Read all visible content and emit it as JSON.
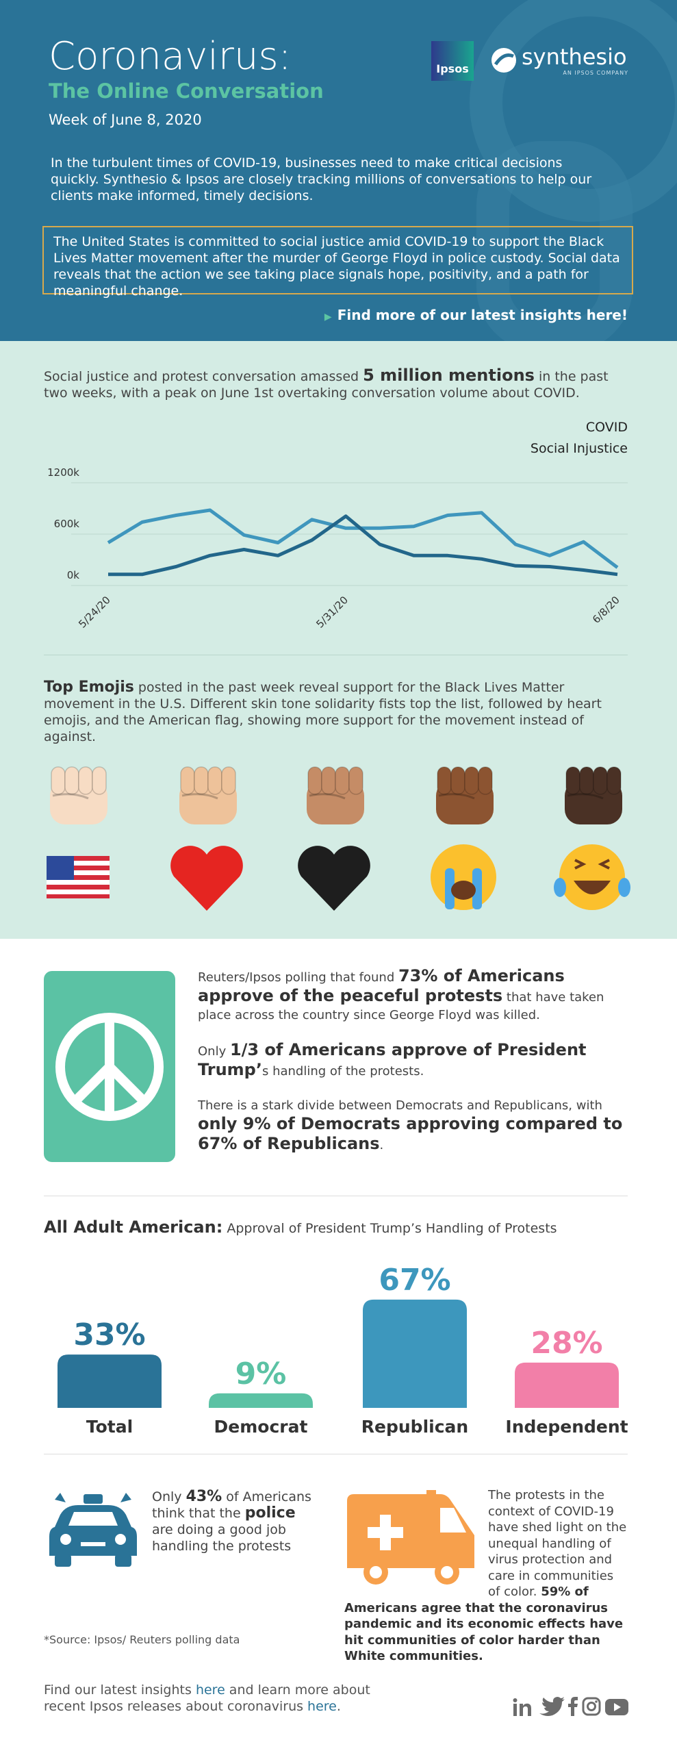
{
  "header": {
    "title": "Coronavirus:",
    "subtitle": "The Online Conversation",
    "date": "Week of June 8, 2020",
    "intro": "In the turbulent times of COVID-19, businesses need to make critical decisions quickly. Synthesio & Ipsos are closely tracking millions of conversations to help our clients make informed, timely decisions.",
    "highlight": "The United States is committed to social justice amid COVID-19 to support the Black Lives Matter movement after the murder of George Floyd in police custody. Social data reveals that the action we see taking place signals hope, positivity, and a path for meaningful change.",
    "cta": "Find more of our latest insights here!",
    "logo_ipsos": "Ipsos",
    "logo_synthesio": "synthesio",
    "logo_tagline": "AN IPSOS COMPANY"
  },
  "conversation": [
    "Social justice and protest conversation amassed ",
    "5 million mentions",
    " in the past two weeks, with a peak on June 1st overtaking conversation volume about COVID."
  ],
  "chart_data": [
    {
      "type": "line",
      "categories": [
        "5/24/20",
        null,
        null,
        null,
        null,
        null,
        null,
        "5/31/20",
        null,
        null,
        null,
        null,
        null,
        null,
        null,
        "6/8/20"
      ],
      "series": [
        {
          "name": "COVID",
          "color": "#3f96bd",
          "values": [
            500000,
            740000,
            820000,
            880000,
            590000,
            500000,
            770000,
            670000,
            670000,
            690000,
            820000,
            850000,
            480000,
            350000,
            510000,
            210000
          ]
        },
        {
          "name": "Social Injustice",
          "color": "#22668a",
          "values": [
            130000,
            130000,
            220000,
            350000,
            420000,
            350000,
            530000,
            810000,
            480000,
            350000,
            350000,
            310000,
            230000,
            220000,
            180000,
            130000
          ]
        }
      ],
      "ylim": [
        0,
        1200000
      ],
      "yticks": [
        {
          "value": 0,
          "label": "0k"
        },
        {
          "value": 600000,
          "label": "600k"
        },
        {
          "value": 1200000,
          "label": "1200k"
        }
      ],
      "grid": true
    },
    {
      "type": "bar",
      "title": "All Adult American:",
      "subtitle": "Approval of President Trump’s Handling of Protests",
      "categories": [
        "Total",
        "Democrat",
        "Republican",
        "Independent"
      ],
      "values": [
        33,
        9,
        67,
        28
      ],
      "value_labels": [
        "33%",
        "9%",
        "67%",
        "28%"
      ],
      "colors": [
        "#2a7397",
        "#5bc2a4",
        "#3d97bd",
        "#f27fa8"
      ]
    }
  ],
  "emojis": [
    "Top Emojis",
    " posted in the past week reveal support for the Black Lives Matter movement in the U.S.  Different skin tone solidarity fists top the list, followed by heart emojis, and the American flag, showing more support for the movement instead of against."
  ],
  "polling": {
    "p1": [
      "Reuters/Ipsos polling that found ",
      "73% of Americans approve of the peaceful protests",
      " that have taken place across the country since George Floyd was killed."
    ],
    "p2": [
      "Only ",
      "1/3 of Americans approve of President Trump’",
      "s handling of the protests."
    ],
    "p3": [
      "There is a stark divide between Democrats and Republicans, with ",
      "only 9% of Democrats approving compared to 67% of Republicans",
      "."
    ]
  },
  "police": [
    "Only ",
    "43%",
    " of Americans think that the ",
    "police",
    " are doing a good job handling the protests"
  ],
  "communities": [
    "The protests in the context of COVID-19 have shed light on the unequal handling of virus protection and care in communities of color. ",
    "59% of Americans agree that the coronavirus pandemic and its economic effects have hit communities of color harder than White communities."
  ],
  "source": "*Source: Ipsos/ Reuters polling data",
  "footer": [
    "Find our latest insights ",
    "here",
    " and learn more about recent Ipsos releases about coronavirus ",
    "here",
    "."
  ]
}
